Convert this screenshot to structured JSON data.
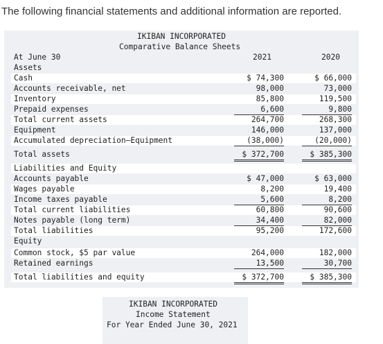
{
  "intro": "The following financial statements and additional information are reported.",
  "balance_sheet": {
    "company": "IKIBAN INCORPORATED",
    "title": "Comparative Balance Sheets",
    "date_label": "At June 30",
    "col_2021": "2021",
    "col_2020": "2020",
    "rows": [
      {
        "label": "Assets",
        "v2021": "",
        "v2020": ""
      },
      {
        "label": "Cash",
        "v2021": "$ 74,300",
        "v2020": "$ 66,000"
      },
      {
        "label": "Accounts receivable, net",
        "v2021": "98,000",
        "v2020": "73,000"
      },
      {
        "label": "Inventory",
        "v2021": "85,800",
        "v2020": "119,500"
      },
      {
        "label": "Prepaid expenses",
        "v2021": "6,600",
        "v2020": "9,800"
      },
      {
        "label": "Total current assets",
        "v2021": "264,700",
        "v2020": "268,300"
      },
      {
        "label": "Equipment",
        "v2021": "146,000",
        "v2020": "137,000"
      },
      {
        "label": "Accumulated depreciation—Equipment",
        "v2021": "(38,000)",
        "v2020": "(20,000)"
      },
      {
        "label": "Total assets",
        "v2021": "$ 372,700",
        "v2020": "$ 385,300"
      },
      {
        "label": "Liabilities and Equity",
        "v2021": "",
        "v2020": ""
      },
      {
        "label": "Accounts payable",
        "v2021": "$ 47,000",
        "v2020": "$ 63,000"
      },
      {
        "label": "Wages payable",
        "v2021": "8,200",
        "v2020": "19,400"
      },
      {
        "label": "Income taxes payable",
        "v2021": "5,600",
        "v2020": "8,200"
      },
      {
        "label": "Total current liabilities",
        "v2021": "60,800",
        "v2020": "90,600"
      },
      {
        "label": "Notes payable (long term)",
        "v2021": "34,400",
        "v2020": "82,000"
      },
      {
        "label": "Total liabilities",
        "v2021": "95,200",
        "v2020": "172,600"
      },
      {
        "label": "Equity",
        "v2021": "",
        "v2020": ""
      },
      {
        "label": "Common stock, $5 par value",
        "v2021": "264,000",
        "v2020": "182,000"
      },
      {
        "label": "Retained earnings",
        "v2021": "13,500",
        "v2020": "30,700"
      },
      {
        "label": "Total liabilities and equity",
        "v2021": "$ 372,700",
        "v2020": "$ 385,300"
      }
    ]
  },
  "income_statement": {
    "company": "IKIBAN INCORPORATED",
    "title": "Income Statement",
    "period": "For Year Ended June 30, 2021"
  }
}
